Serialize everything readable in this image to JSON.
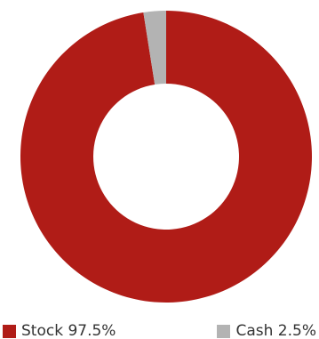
{
  "chart_data": {
    "type": "pie",
    "style": "donut",
    "series": [
      {
        "name": "Stock",
        "value": 97.5,
        "color": "#b01c17",
        "label": "Stock 97.5%"
      },
      {
        "name": "Cash",
        "value": 2.5,
        "color": "#b3b3b3",
        "label": "Cash 2.5%"
      }
    ],
    "legend_position": "bottom",
    "start_angle": "12-o'clock",
    "direction": "clockwise"
  }
}
